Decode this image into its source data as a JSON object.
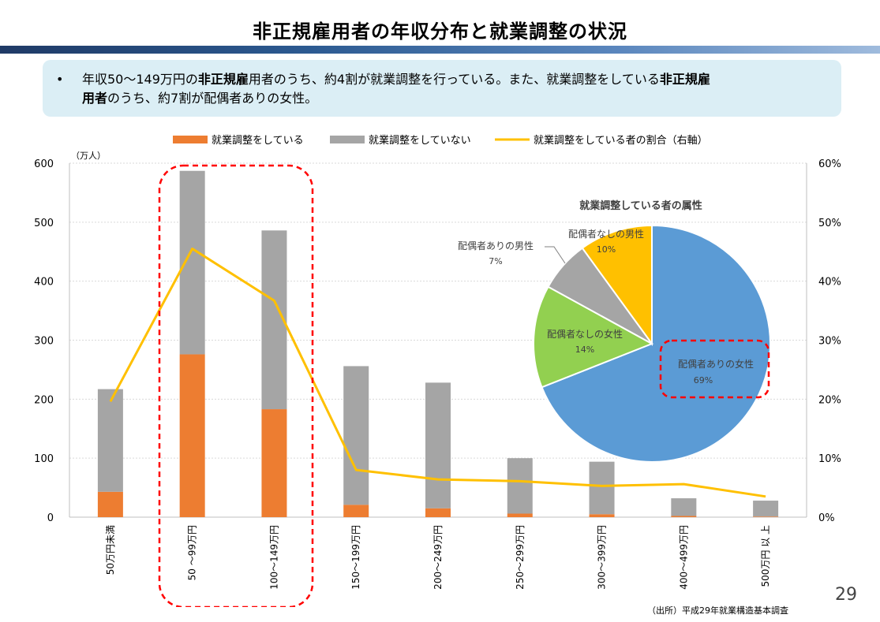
{
  "slide": {
    "title": "非正規雇用者の年収分布と就業調整の状況",
    "bullet_marker": "•",
    "summary_line1_part1": "年収50～149万円の",
    "summary_line1_hl": "非正規雇",
    "summary_line1_part2": "用者のうち、約4割が就業調整を行っている。また、就業調整をしている",
    "summary_line1_hl2": "非正規雇",
    "summary_line2_hl": "用者",
    "summary_line2_part": "のうち、約7割が配偶者ありの女性。",
    "page_number": "29",
    "source": "（出所）平成29年就業構造基本調査"
  },
  "chart_data": [
    {
      "type": "bar",
      "stacked": true,
      "unit_label": "（万人）",
      "categories": [
        "50万円未満",
        "50 ～99万円",
        "100～149万円",
        "150～199万円",
        "200～249万円",
        "250～299万円",
        "300～399万円",
        "400～499万円",
        "500万円 以 上"
      ],
      "series": [
        {
          "name": "就業調整をしている",
          "color": "#ed7d31",
          "values": [
            43,
            276,
            183,
            21,
            15,
            6,
            5,
            2,
            1
          ]
        },
        {
          "name": "就業調整をしていない",
          "color": "#a5a5a5",
          "values": [
            174,
            311,
            303,
            235,
            213,
            94,
            89,
            30,
            27
          ]
        }
      ],
      "line_series": {
        "name": "就業調整をしている者の割合（右軸）",
        "color": "#ffc000",
        "values": [
          19.6,
          45.5,
          36.7,
          8.0,
          6.4,
          6.1,
          5.3,
          5.6,
          3.5
        ]
      },
      "y_left": {
        "min": 0,
        "max": 600,
        "ticks": [
          "0",
          "100",
          "200",
          "300",
          "400",
          "500",
          "600"
        ]
      },
      "y_right": {
        "min": 0,
        "max": 60,
        "ticks": [
          "0%",
          "10%",
          "20%",
          "30%",
          "40%",
          "50%",
          "60%"
        ]
      },
      "legend_position": "top",
      "grid": true
    },
    {
      "type": "pie",
      "title": "就業調整している者の属性",
      "slices": [
        {
          "label": "配偶者ありの女性",
          "value": 69,
          "pct": "69%",
          "color": "#5b9bd5"
        },
        {
          "label": "配偶者なしの女性",
          "value": 14,
          "pct": "14%",
          "color": "#92d050"
        },
        {
          "label": "配偶者ありの男性",
          "value": 7,
          "pct": "7%",
          "color": "#a5a5a5"
        },
        {
          "label": "配偶者なしの男性",
          "value": 10,
          "pct": "10%",
          "color": "#ffc000"
        }
      ]
    }
  ]
}
